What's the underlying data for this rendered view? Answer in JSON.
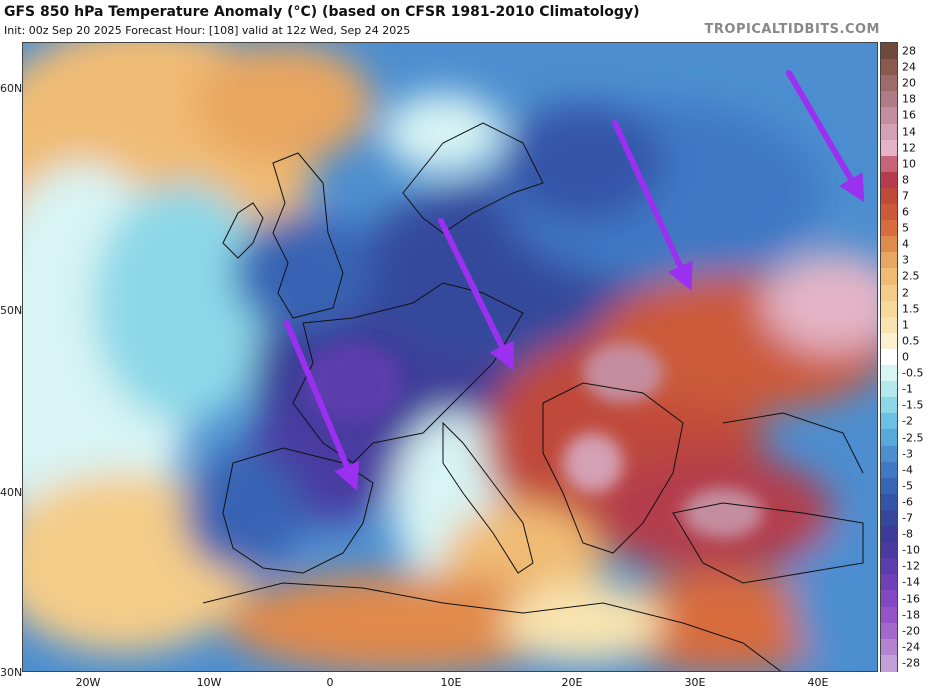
{
  "header": {
    "title": "GFS 850 hPa Temperature Anomaly (°C) (based on CFSR 1981-2010 Climatology)",
    "subtitle": "Init: 00z Sep 20 2025   Forecast Hour: [108]   valid at 12z Wed, Sep 24 2025",
    "brand": "TROPICALTIDBITS.COM"
  },
  "axes": {
    "lat_labels": [
      "60N",
      "50N",
      "40N",
      "30N"
    ],
    "lon_labels": [
      "20W",
      "10W",
      "0",
      "10E",
      "20E",
      "30E",
      "40E"
    ]
  },
  "colorbar": {
    "labels": [
      "28",
      "24",
      "20",
      "18",
      "16",
      "14",
      "12",
      "10",
      "8",
      "7",
      "6",
      "5",
      "4",
      "3",
      "2.5",
      "2",
      "1.5",
      "1",
      "0.5",
      "0",
      "-0.5",
      "-1",
      "-1.5",
      "-2",
      "-2.5",
      "-3",
      "-4",
      "-5",
      "-6",
      "-7",
      "-8",
      "-10",
      "-12",
      "-14",
      "-16",
      "-18",
      "-20",
      "-24",
      "-28"
    ],
    "colors": [
      "#6e4a3c",
      "#8a5a4e",
      "#a06a6a",
      "#b07a86",
      "#c48ea0",
      "#d4a0b4",
      "#e4b4c6",
      "#c86478",
      "#b43c4c",
      "#c04a3a",
      "#cc5a3a",
      "#d86c3c",
      "#e08a4c",
      "#e8a660",
      "#f0bc74",
      "#f4cc88",
      "#f6d89a",
      "#f8e4b0",
      "#fbf0d0",
      "#ffffff",
      "#d8f4f4",
      "#b4e8ec",
      "#8cd8e8",
      "#6cc0e4",
      "#58a8dc",
      "#4c8ed0",
      "#4078c4",
      "#3864b4",
      "#3454a8",
      "#34489c",
      "#3c3c98",
      "#4a3aa0",
      "#5c3cac",
      "#7040b8",
      "#8448c4",
      "#9454c8",
      "#a468cc",
      "#b484d0",
      "#c4a0d8"
    ]
  },
  "annotations": {
    "arrow_color": "#9b30f0",
    "arrows": [
      {
        "name": "arrow-iberia"
      },
      {
        "name": "arrow-alps"
      },
      {
        "name": "arrow-ukraine"
      },
      {
        "name": "arrow-russia"
      }
    ]
  }
}
